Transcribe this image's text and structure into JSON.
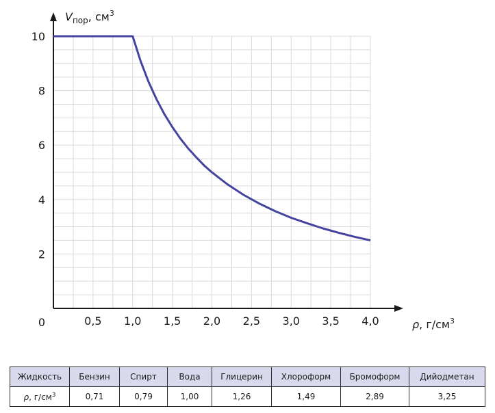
{
  "chart_data": {
    "type": "line",
    "xlabel": {
      "symbol": "ρ",
      "unit": ", г/см",
      "unit_sup": "3"
    },
    "ylabel": {
      "symbol": "V",
      "sub": "пор",
      "unit": ", см",
      "unit_sup": "3"
    },
    "origin_label": "0",
    "x_ticks": [
      {
        "v": 0.5,
        "label": "0,5"
      },
      {
        "v": 1.0,
        "label": "1,0"
      },
      {
        "v": 1.5,
        "label": "1,5"
      },
      {
        "v": 2.0,
        "label": "2,0"
      },
      {
        "v": 2.5,
        "label": "2,5"
      },
      {
        "v": 3.0,
        "label": "3,0"
      },
      {
        "v": 3.5,
        "label": "3,5"
      },
      {
        "v": 4.0,
        "label": "4,0"
      }
    ],
    "y_ticks": [
      {
        "v": 2,
        "label": "2"
      },
      {
        "v": 4,
        "label": "4"
      },
      {
        "v": 6,
        "label": "6"
      },
      {
        "v": 8,
        "label": "8"
      },
      {
        "v": 10,
        "label": "10"
      }
    ],
    "xlim": [
      0,
      4.0
    ],
    "ylim": [
      0,
      10
    ],
    "grid": true,
    "series": [
      {
        "color": "#4444a0",
        "x": [
          0,
          0.5,
          1.0,
          1.1,
          1.2,
          1.3,
          1.4,
          1.5,
          1.6,
          1.7,
          1.8,
          1.9,
          2.0,
          2.2,
          2.4,
          2.6,
          2.8,
          3.0,
          3.2,
          3.4,
          3.6,
          3.8,
          4.0
        ],
        "y": [
          10,
          10,
          10,
          9.09,
          8.33,
          7.69,
          7.14,
          6.67,
          6.25,
          5.88,
          5.56,
          5.26,
          5.0,
          4.55,
          4.17,
          3.85,
          3.57,
          3.33,
          3.13,
          2.94,
          2.78,
          2.63,
          2.5
        ]
      }
    ]
  },
  "table": {
    "header_row": [
      "Жидкость",
      "Бензин",
      "Спирт",
      "Вода",
      "Глицерин",
      "Хлороформ",
      "Бромоформ",
      "Дийодметан"
    ],
    "row2_label": {
      "symbol": "ρ",
      "unit": ", г/см",
      "sup": "3"
    },
    "values": [
      "0,71",
      "0,79",
      "1,00",
      "1,26",
      "1,49",
      "2,89",
      "3,25"
    ]
  }
}
